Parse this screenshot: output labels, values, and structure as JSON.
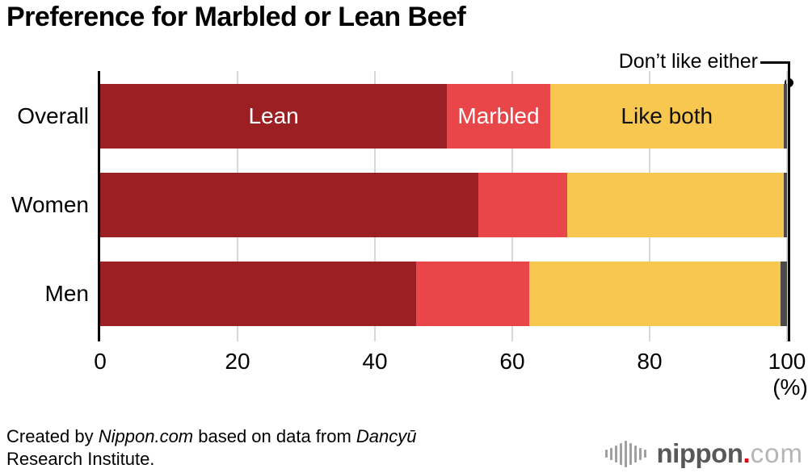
{
  "title": "Preference for Marbled or Lean Beef",
  "chart_data": {
    "type": "bar",
    "orientation": "horizontal",
    "stacked": true,
    "title": "Preference for Marbled or Lean Beef",
    "categories": [
      "Overall",
      "Women",
      "Men"
    ],
    "series": [
      {
        "name": "Lean",
        "color": "#9b2024",
        "label_color": "#ffffff",
        "inline_label_row": 0,
        "values": [
          50.5,
          55.0,
          46.0
        ]
      },
      {
        "name": "Marbled",
        "color": "#e84649",
        "label_color": "#ffffff",
        "inline_label_row": 0,
        "values": [
          15.0,
          13.0,
          16.5
        ]
      },
      {
        "name": "Like both",
        "color": "#f8c74f",
        "label_color": "#111111",
        "inline_label_row": 0,
        "values": [
          34.0,
          31.5,
          36.5
        ]
      },
      {
        "name": "Don’t like either",
        "color": "#4a4a48",
        "label_color": null,
        "inline_label_row": null,
        "values": [
          0.5,
          0.5,
          1.0
        ]
      }
    ],
    "xlim": [
      0,
      100
    ],
    "x_ticks": [
      "0",
      "20",
      "40",
      "60",
      "80",
      "100"
    ],
    "x_unit": "(%)",
    "annotation_label": "Don’t like either",
    "grid": true,
    "gridline_color": "#d8d8d8",
    "axis_color": "#000000",
    "legend_position": "inline-first-bar"
  },
  "footer": {
    "part1": "Created by ",
    "italic1": "Nippon.com",
    "part2": " based on data from ",
    "italic2": "Dancyū",
    "part3": "Research Institute."
  },
  "logo": {
    "name": "nippon",
    "dot": ".",
    "tld": "com",
    "accent_color": "#e60012"
  }
}
